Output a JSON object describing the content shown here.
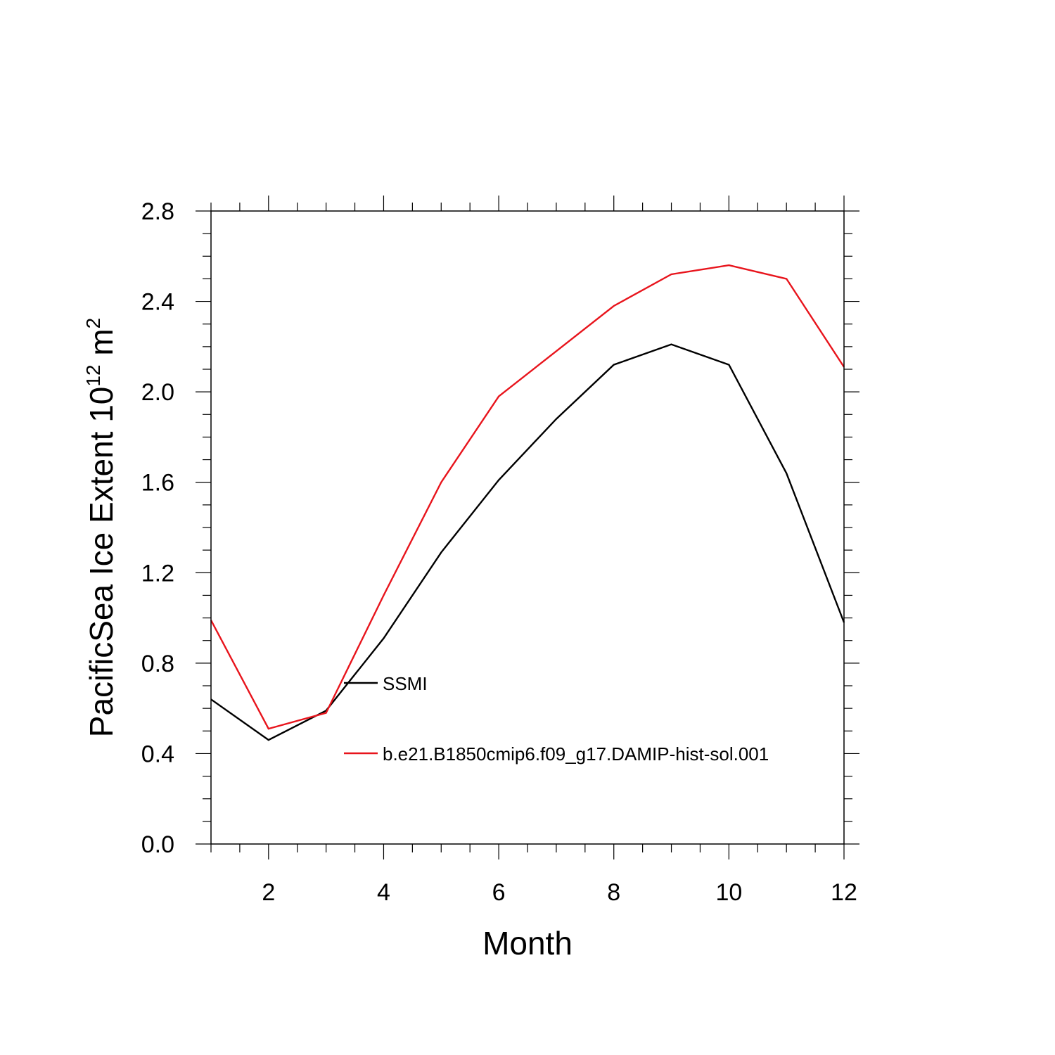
{
  "chart_data": {
    "type": "line",
    "title": "",
    "xlabel": "Month",
    "ylabel": {
      "prefix": "PacificSea Ice Extent 10",
      "exponent": "12",
      "unit": " m",
      "unit_exponent": "2"
    },
    "xlim": [
      1,
      12
    ],
    "ylim": [
      0.0,
      2.8
    ],
    "x_ticks": [
      2,
      4,
      6,
      8,
      10,
      12
    ],
    "x_tick_labels": [
      "2",
      "4",
      "6",
      "8",
      "10",
      "12"
    ],
    "y_ticks": [
      0.0,
      0.4,
      0.8,
      1.2,
      1.6,
      2.0,
      2.4,
      2.8
    ],
    "y_tick_labels": [
      "0.0",
      "0.4",
      "0.8",
      "1.2",
      "1.6",
      "2.0",
      "2.4",
      "2.8"
    ],
    "x_minor_step": 0.5,
    "y_minor_step": 0.1,
    "grid": false,
    "legend_position": "center",
    "x": [
      1,
      2,
      3,
      4,
      5,
      6,
      7,
      8,
      9,
      10,
      11,
      12
    ],
    "series": [
      {
        "name": "SSMI",
        "color": "#000000",
        "values": [
          0.64,
          0.46,
          0.59,
          0.91,
          1.29,
          1.61,
          1.88,
          2.12,
          2.21,
          2.12,
          1.64,
          0.98
        ]
      },
      {
        "name": "b.e21.B1850cmip6.f09_g17.DAMIP-hist-sol.001",
        "color": "#e8141c",
        "values": [
          0.99,
          0.51,
          0.58,
          1.1,
          1.6,
          1.98,
          2.18,
          2.38,
          2.52,
          2.56,
          2.5,
          2.11
        ]
      }
    ]
  }
}
